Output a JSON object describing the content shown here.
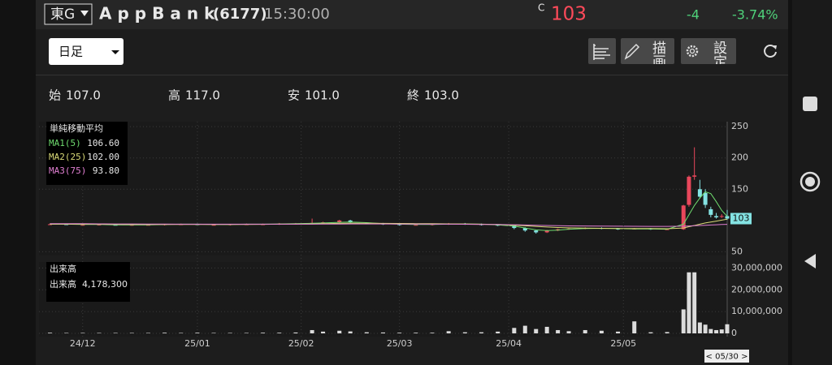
{
  "header": {
    "exchange": "東G",
    "name": "AppBank",
    "code": "(6177)",
    "time": "15:30:00",
    "price_flag": "C",
    "price": 103,
    "change": -4,
    "change_pct": "-3.74%"
  },
  "toolbar": {
    "period": "日足",
    "draw": "描画",
    "settings": "設定"
  },
  "ohlc": [
    {
      "label": "始",
      "value": "107.0"
    },
    {
      "label": "高",
      "value": "117.0"
    },
    {
      "label": "安",
      "value": "101.0"
    },
    {
      "label": "終",
      "value": "103.0"
    }
  ],
  "chart_data": [
    {
      "type": "candlestick",
      "legend_title": "単純移動平均",
      "cursor_label": "< 05/30 >",
      "up_color": "#e8475b",
      "down_color": "#84e3e3",
      "x": [
        2,
        5,
        8,
        11,
        14,
        17,
        20,
        23,
        26,
        29,
        32,
        35,
        38,
        41,
        44,
        47,
        50,
        52,
        55,
        57,
        60,
        63,
        66,
        69,
        72,
        75,
        78,
        81,
        84,
        87,
        89,
        91,
        93,
        95,
        97,
        100,
        103,
        106,
        109,
        112,
        115,
        118,
        119,
        120,
        121,
        122,
        123,
        124,
        125,
        126
      ],
      "open": [
        94,
        94,
        93,
        93,
        93,
        92.5,
        93,
        93,
        94,
        94,
        93,
        93,
        94,
        94,
        94,
        95,
        95,
        96,
        97,
        100,
        96,
        95,
        94,
        93,
        93,
        94,
        95,
        94,
        93,
        92,
        88,
        84,
        81,
        84,
        86,
        87,
        88,
        87,
        87,
        87,
        86,
        86,
        125,
        170,
        150,
        144,
        118,
        107,
        106,
        107
      ],
      "high": [
        95,
        95,
        94,
        94,
        94,
        93.5,
        94,
        94,
        95,
        95,
        94,
        94,
        95,
        95,
        96,
        96,
        103,
        98,
        101,
        101,
        97,
        96,
        95,
        94,
        95,
        96,
        96,
        95,
        94,
        93,
        89,
        85,
        85,
        87,
        88,
        89,
        89,
        88,
        88,
        88,
        87,
        125,
        172,
        217,
        165,
        150,
        122,
        112,
        110,
        117
      ],
      "low": [
        93,
        93,
        92,
        92,
        92,
        91.5,
        92,
        92,
        93,
        93,
        92,
        92,
        93,
        93,
        93,
        94,
        94,
        95,
        96,
        96,
        94,
        93,
        92,
        92,
        92,
        93,
        93,
        92,
        91,
        86,
        82,
        79,
        80,
        83,
        85,
        86,
        86,
        85,
        86,
        85,
        85,
        85,
        122,
        165,
        135,
        120,
        105,
        103,
        104,
        101
      ],
      "close": [
        94,
        93.5,
        93,
        93.5,
        92.5,
        93,
        93,
        94,
        94,
        93.5,
        93,
        94,
        94,
        94,
        95,
        95,
        96,
        97,
        100,
        97,
        95,
        94,
        93,
        93,
        94,
        95,
        94,
        93,
        92,
        88,
        84,
        81,
        84,
        86,
        87,
        88,
        87,
        86,
        87,
        86,
        86,
        124,
        170,
        172,
        138,
        125,
        109,
        105,
        107,
        103
      ],
      "series": [
        {
          "name": "MA1(5)",
          "current": "106.60",
          "color": "#6fdc6f",
          "values": [
            94,
            94,
            93.5,
            93.5,
            93,
            93,
            93,
            93.5,
            94,
            94,
            93.5,
            93.5,
            94,
            94,
            94.5,
            95,
            95.5,
            96,
            97,
            97.5,
            96.5,
            95,
            94,
            93.5,
            93.5,
            94,
            94.5,
            94,
            93,
            91,
            88,
            85,
            84,
            84.5,
            86,
            87,
            87.5,
            87,
            86.5,
            86.5,
            86,
            94,
            109,
            124,
            136,
            146,
            143,
            130,
            116,
            106.6
          ]
        },
        {
          "name": "MA2(25)",
          "current": "102.00",
          "color": "#d9d977",
          "values": [
            94,
            94,
            94,
            94,
            93.8,
            93.6,
            93.5,
            93.5,
            93.5,
            93.6,
            93.6,
            93.6,
            93.7,
            93.8,
            94,
            94.2,
            94.5,
            94.8,
            95.3,
            95.5,
            95.5,
            95.4,
            95.2,
            95,
            94.8,
            94.6,
            94.4,
            94,
            93.5,
            92.5,
            91.5,
            90.5,
            89.5,
            88.8,
            88.2,
            87.8,
            87.5,
            87.2,
            87,
            87,
            86.8,
            88,
            90,
            92,
            94,
            96,
            97.5,
            99,
            100.5,
            102
          ]
        },
        {
          "name": "MA3(75)",
          "current": "93.80",
          "color": "#e07fd2",
          "values": [
            95,
            95,
            94.8,
            94.6,
            94.5,
            94.4,
            94.3,
            94.2,
            94.1,
            94,
            94,
            94,
            94,
            94,
            94,
            94,
            94.1,
            94.2,
            94.3,
            94.4,
            94.4,
            94.4,
            94.3,
            94.2,
            94.1,
            94,
            93.9,
            93.7,
            93.5,
            93.2,
            92.8,
            92.4,
            92,
            91.7,
            91.4,
            91.2,
            91,
            90.8,
            90.7,
            90.6,
            90.5,
            90.8,
            91.2,
            91.6,
            92,
            92.4,
            92.8,
            93.2,
            93.5,
            93.8
          ]
        }
      ],
      "xlim": [
        0,
        126
      ],
      "xticks": [
        {
          "value": 8,
          "label": "24/12"
        },
        {
          "value": 29,
          "label": "25/01"
        },
        {
          "value": 48,
          "label": "25/02"
        },
        {
          "value": 66,
          "label": "25/03"
        },
        {
          "value": 86,
          "label": "25/04"
        },
        {
          "value": 107,
          "label": "25/05"
        }
      ],
      "ylim": [
        44,
        258
      ],
      "yticks": [
        50,
        150,
        200,
        250
      ],
      "grid": true
    },
    {
      "type": "bar",
      "title": "出来高",
      "current_name": "出来高",
      "current": "4,178,300",
      "color": "#dcdcdc",
      "x": [
        2,
        5,
        8,
        11,
        14,
        17,
        20,
        23,
        26,
        29,
        32,
        35,
        38,
        41,
        44,
        47,
        50,
        52,
        55,
        57,
        60,
        63,
        66,
        69,
        72,
        75,
        78,
        81,
        84,
        87,
        89,
        91,
        93,
        95,
        97,
        100,
        103,
        106,
        109,
        112,
        115,
        118,
        119,
        120,
        121,
        122,
        123,
        124,
        125,
        126
      ],
      "values": [
        300000,
        200000,
        200000,
        200000,
        200000,
        200000,
        200000,
        300000,
        200000,
        300000,
        200000,
        200000,
        200000,
        300000,
        300000,
        400000,
        1500000,
        800000,
        1200000,
        900000,
        500000,
        400000,
        300000,
        300000,
        300000,
        1000000,
        500000,
        500000,
        800000,
        2500000,
        3500000,
        2000000,
        3000000,
        1500000,
        1000000,
        1500000,
        1200000,
        800000,
        5500000,
        500000,
        600000,
        11000000,
        28000000,
        28000000,
        5000000,
        4000000,
        2000000,
        1500000,
        1800000,
        4178300
      ],
      "xlim": [
        0,
        126
      ],
      "ylim": [
        0,
        32000000
      ],
      "yticks": [
        0,
        {
          "value": 10000000,
          "label": "10,000,000"
        },
        {
          "value": 20000000,
          "label": "20,000,000"
        },
        {
          "value": 30000000,
          "label": "30,000,000"
        }
      ],
      "grid": true
    }
  ]
}
